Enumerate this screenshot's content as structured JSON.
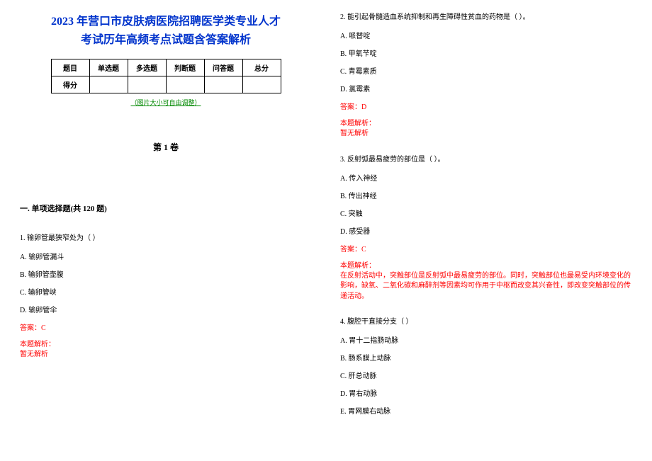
{
  "title_color": "#0033cc",
  "title_line1": "2023 年营口市皮肤病医院招聘医学类专业人才",
  "title_line2": "考试历年高频考点试题含答案解析",
  "score_table": {
    "headers": [
      "题目",
      "单选题",
      "多选题",
      "判断题",
      "问答题",
      "总分"
    ],
    "row2_first": "得分"
  },
  "img_note": "（图片大小可自由调整）",
  "img_note_color": "#008800",
  "volume_title": "第 1 卷",
  "section_title": "一. 单项选择题(共 120 题)",
  "questions": [
    {
      "stem": "1. 输卵管最狭窄处为（ ）",
      "options": [
        "A. 输卵管漏斗",
        "B. 输卵管壶腹",
        "C. 输卵管峡",
        "D. 输卵管伞"
      ],
      "answer": "答案：C",
      "explain_label": "本题解析：",
      "explain_body": "暂无解析"
    },
    {
      "stem": "2. 能引起骨髓造血系统抑制和再生障碍性贫血的药物是（ ）。",
      "options": [
        "A. 哌替啶",
        "B. 甲氧苄啶",
        "C. 青霉素质",
        "D. 氯霉素"
      ],
      "answer": "答案：D",
      "explain_label": "本题解析：",
      "explain_body": "暂无解析"
    },
    {
      "stem": "3. 反射弧最易疲劳的部位是（ ）。",
      "options": [
        "A. 传入神经",
        "B. 传出神经",
        "C. 突触",
        "D. 感受器"
      ],
      "answer": "答案：C",
      "explain_label": "本题解析：",
      "explain_body": "在反射活动中，突触部位是反射弧中最易疲劳的部位。同时，突触部位也最易受内环境变化的影响，缺氧、二氧化碳和麻醉剂等因素均可作用于中枢而改变其兴奋性，即改变突触部位的传递活动。"
    },
    {
      "stem": "4. 腹腔干直接分支（ ）",
      "options": [
        "A. 胃十二指肠动脉",
        "B. 肠系膜上动脉",
        "C. 肝总动脉",
        "D. 胃右动脉",
        "E. 胃网膜右动脉"
      ],
      "answer": "",
      "explain_label": "",
      "explain_body": ""
    }
  ],
  "answer_color": "#ff0000",
  "explain_color": "#ff0000"
}
